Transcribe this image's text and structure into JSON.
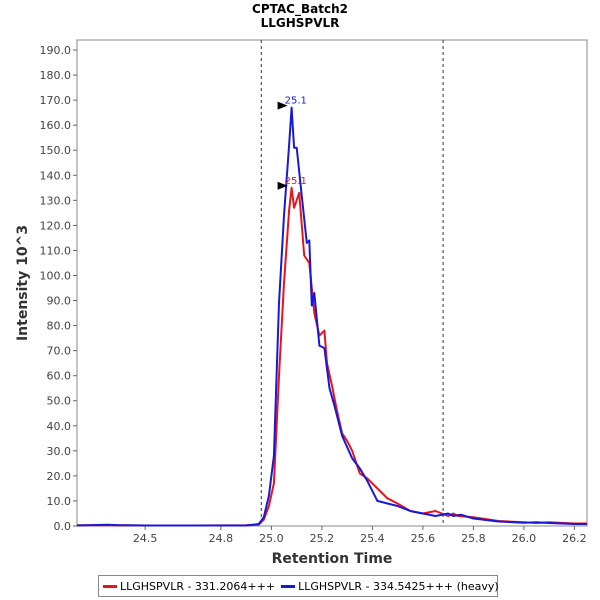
{
  "chart_data": {
    "type": "line",
    "title": "CPTAC_Batch2",
    "subtitle": "LLGHSPVLR",
    "xlabel": "Retention Time",
    "ylabel": "Intensity 10^3",
    "xlim": [
      24.23,
      26.25
    ],
    "ylim": [
      0,
      194
    ],
    "xticks": [
      24.5,
      24.8,
      25.0,
      25.2,
      25.4,
      25.6,
      25.8,
      26.0,
      26.2
    ],
    "xtick_labels": [
      "24.5",
      "24.8",
      "25.0",
      "25.2",
      "25.4",
      "25.6",
      "25.8",
      "26.0",
      "26.2"
    ],
    "yticks": [
      0,
      10,
      20,
      30,
      40,
      50,
      60,
      70,
      80,
      90,
      100,
      110,
      120,
      130,
      140,
      150,
      160,
      170,
      180,
      190
    ],
    "ytick_labels": [
      "0.0",
      "10.0",
      "20.0",
      "30.0",
      "40.0",
      "50.0",
      "60.0",
      "70.0",
      "80.0",
      "90.0",
      "100.0",
      "110.0",
      "120.0",
      "130.0",
      "140.0",
      "150.0",
      "160.0",
      "170.0",
      "180.0",
      "190.0"
    ],
    "boundaries": [
      24.96,
      25.68
    ],
    "series": [
      {
        "name": "LLGHSPVLR - 331.2064+++",
        "color": "#e8141c",
        "x": [
          24.23,
          24.35,
          24.5,
          24.7,
          24.9,
          24.95,
          24.97,
          24.99,
          25.01,
          25.03,
          25.05,
          25.07,
          25.08,
          25.09,
          25.11,
          25.13,
          25.15,
          25.17,
          25.19,
          25.21,
          25.22,
          25.24,
          25.26,
          25.28,
          25.3,
          25.32,
          25.35,
          25.38,
          25.42,
          25.46,
          25.5,
          25.55,
          25.6,
          25.65,
          25.7,
          25.72,
          25.74,
          25.8,
          25.9,
          26.0,
          26.05,
          26.1,
          26.2,
          26.25
        ],
        "y": [
          0.3,
          0.3,
          0.2,
          0.2,
          0.3,
          0.6,
          2.5,
          8,
          17,
          60,
          97,
          126,
          135,
          127,
          133,
          108,
          105,
          85,
          76,
          78,
          65,
          56,
          46,
          37,
          34,
          30,
          21,
          19,
          15,
          11,
          9,
          6,
          5,
          6,
          4,
          5,
          4,
          3.5,
          2,
          1.5,
          1.2,
          1.5,
          1,
          1
        ]
      },
      {
        "name": "LLGHSPVLR - 334.5425+++ (heavy)",
        "color": "#1818d8",
        "x": [
          24.23,
          24.35,
          24.4,
          24.5,
          24.7,
          24.9,
          24.95,
          24.97,
          24.99,
          25.01,
          25.03,
          25.05,
          25.07,
          25.08,
          25.09,
          25.1,
          25.12,
          25.14,
          25.15,
          25.16,
          25.17,
          25.19,
          25.21,
          25.23,
          25.25,
          25.28,
          25.32,
          25.35,
          25.38,
          25.42,
          25.46,
          25.5,
          25.55,
          25.6,
          25.65,
          25.7,
          25.72,
          25.75,
          25.8,
          25.9,
          26.0,
          26.05,
          26.1,
          26.2,
          26.25
        ],
        "y": [
          0.2,
          0.5,
          0.3,
          0.2,
          0.2,
          0.2,
          0.8,
          3.5,
          12,
          28,
          89,
          124,
          152,
          167,
          151,
          151,
          132,
          113,
          114,
          88,
          93,
          72,
          71,
          55,
          48,
          36,
          27,
          23,
          18,
          10,
          9,
          8,
          6,
          5,
          4,
          5,
          4,
          4.5,
          3,
          1.8,
          1.3,
          1.5,
          1.2,
          0.8,
          0.8
        ]
      }
    ],
    "annotations": [
      {
        "text": "25.1",
        "x": 25.08,
        "y": 167,
        "color": "#1818d8"
      },
      {
        "text": "25.1",
        "x": 25.08,
        "y": 135,
        "color": "#e8141c"
      }
    ],
    "legend": "bottom"
  }
}
